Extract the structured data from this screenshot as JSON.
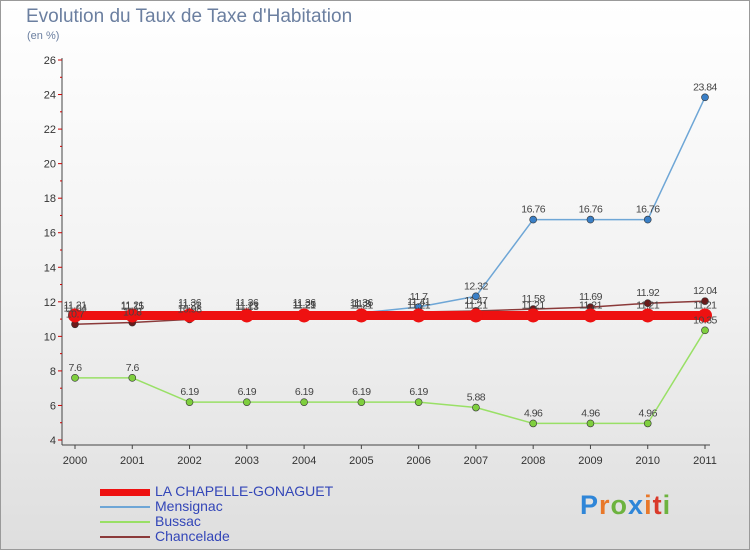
{
  "title": "Evolution du Taux de Taxe d'Habitation",
  "subtitle": "(en %)",
  "brand": {
    "text": "Proxiti",
    "letter_colors": [
      "#2f86d8",
      "#e8782a",
      "#6db33f",
      "#2f86d8",
      "#e8782a",
      "#d93a2b",
      "#6db33f"
    ]
  },
  "chart_data": {
    "type": "line",
    "title": "Evolution du Taux de Taxe d'Habitation",
    "ylabel": "(en %)",
    "xlabel": "",
    "ylim": [
      4,
      26
    ],
    "yticks": [
      4,
      6,
      8,
      10,
      12,
      14,
      16,
      18,
      20,
      22,
      24,
      26
    ],
    "grid": false,
    "legend_position": "bottom-left",
    "x": [
      "2000",
      "2001",
      "2002",
      "2003",
      "2004",
      "2005",
      "2006",
      "2007",
      "2008",
      "2009",
      "2010",
      "2011"
    ],
    "series": [
      {
        "name": "LA CHAPELLE-GONAGUET",
        "color": "#ee1111",
        "values": [
          11.21,
          11.21,
          11.21,
          11.21,
          11.21,
          11.21,
          11.21,
          11.21,
          11.21,
          11.21,
          11.21,
          11.21
        ],
        "labels": [
          "11.21",
          "11.21",
          "11.21",
          "11.21",
          "11.21",
          "11.21",
          "11.21",
          "11.21",
          "11.21",
          "11.21",
          "11.21",
          "11.21"
        ]
      },
      {
        "name": "Mensignac",
        "color": "#6ea6d6",
        "values": [
          11.04,
          11.15,
          11.36,
          11.36,
          11.36,
          11.36,
          11.7,
          12.32,
          16.76,
          16.76,
          16.76,
          23.84
        ],
        "labels": [
          "11.04",
          "11.15",
          "11.36",
          "11.36",
          "11.36",
          "11.36",
          "11.7",
          "12.32",
          "16.76",
          "16.76",
          "16.76",
          "23.84"
        ]
      },
      {
        "name": "Bussac",
        "color": "#99e066",
        "values": [
          7.6,
          7.6,
          6.19,
          6.19,
          6.19,
          6.19,
          6.19,
          5.88,
          4.96,
          4.96,
          4.96,
          10.35
        ],
        "labels": [
          "7.6",
          "7.6",
          "6.19",
          "6.19",
          "6.19",
          "6.19",
          "6.19",
          "5.88",
          "4.96",
          "4.96",
          "4.96",
          "10.35"
        ]
      },
      {
        "name": "Chancelade",
        "color": "#8b3a3a",
        "values": [
          10.7,
          10.8,
          10.98,
          11.13,
          11.25,
          11.3,
          11.41,
          11.47,
          11.58,
          11.69,
          11.92,
          12.04
        ],
        "labels": [
          "10.7",
          "10.8",
          "10.98",
          "11.13",
          "11.25",
          "11.3",
          "11.41",
          "11.47",
          "11.58",
          "11.69",
          "11.92",
          "12.04"
        ]
      }
    ]
  }
}
